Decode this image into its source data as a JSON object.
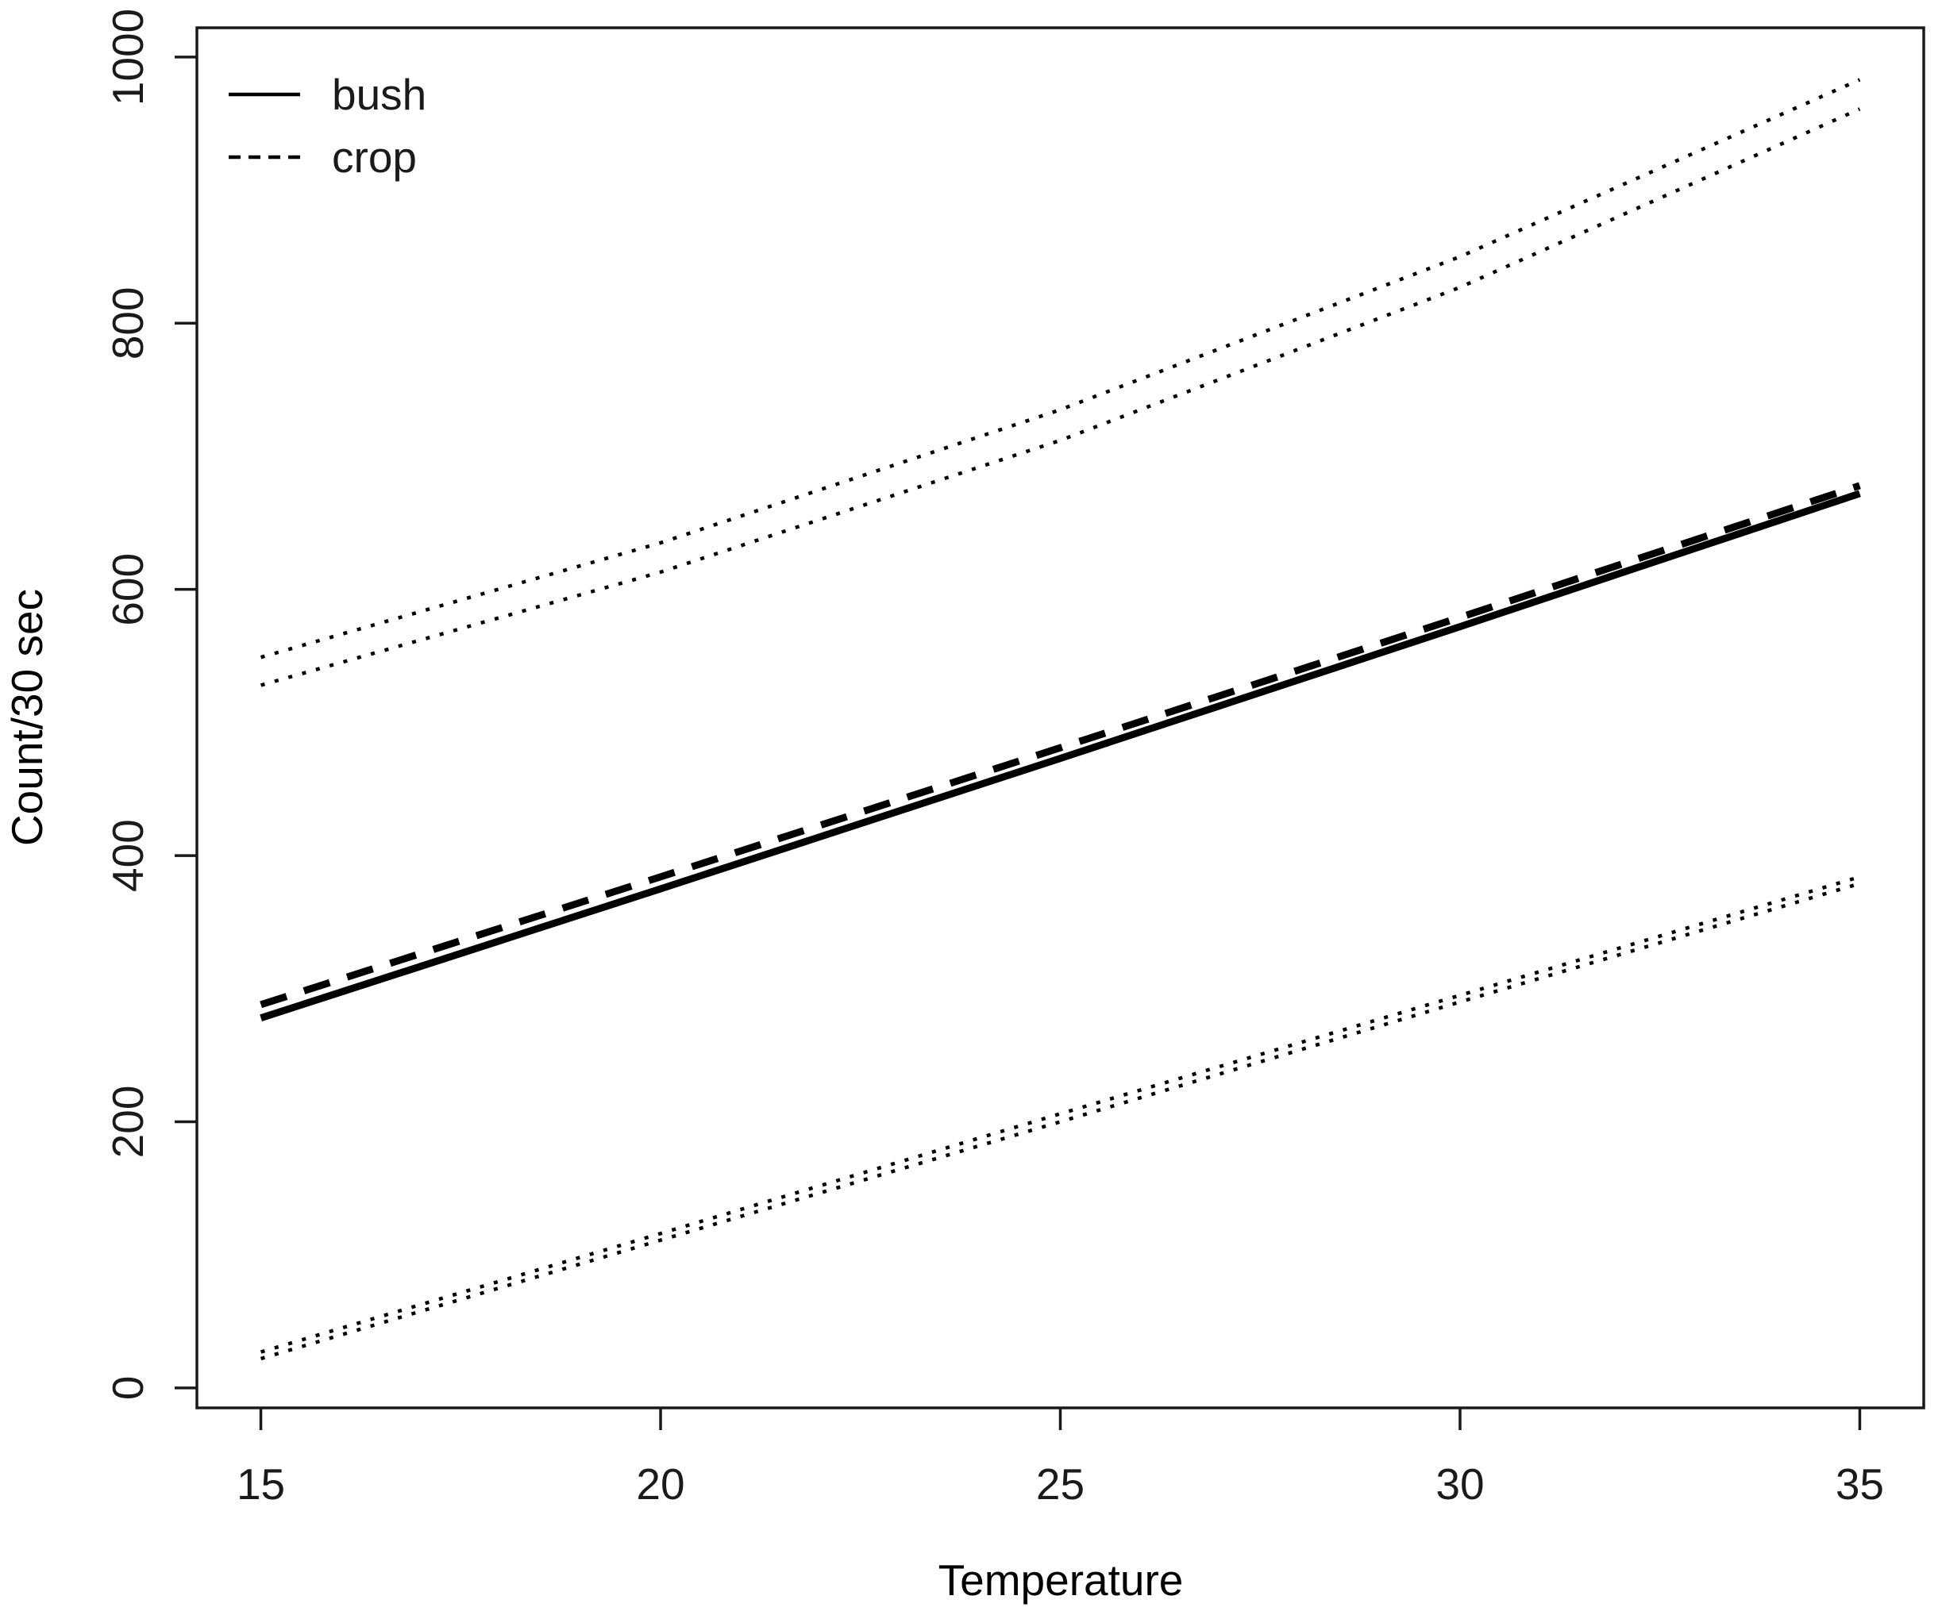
{
  "chart_data": {
    "type": "line",
    "title": "",
    "xlabel": "Temperature",
    "ylabel": "Count/30 sec",
    "x_ticks": [
      15,
      20,
      25,
      30,
      35
    ],
    "y_ticks": [
      0,
      200,
      400,
      600,
      800,
      1000
    ],
    "xlim": [
      14.2,
      35.8
    ],
    "ylim": [
      -15,
      1022
    ],
    "grid": false,
    "background": "#ffffff",
    "axis_color": "#1a1a1a",
    "line_color": "#000000",
    "legend": {
      "position": "top-left",
      "box": false,
      "entries": [
        {
          "label": "bush",
          "line_style": "solid"
        },
        {
          "label": "crop",
          "line_style": "dashed"
        }
      ]
    },
    "series": [
      {
        "name": "bush fitted line",
        "group": "bush",
        "role": "fit",
        "line_style": "solid",
        "line_width": 9,
        "x": [
          15,
          20,
          25,
          30,
          35
        ],
        "y": [
          278,
          375,
          473,
          572,
          672
        ]
      },
      {
        "name": "crop fitted line",
        "group": "crop",
        "role": "fit",
        "line_style": "dashed",
        "line_width": 9,
        "x": [
          15,
          20,
          25,
          30,
          35
        ],
        "y": [
          288,
          384,
          481,
          579,
          678
        ]
      },
      {
        "name": "crop upper confidence bound",
        "group": "crop",
        "role": "upper-band",
        "line_style": "dotted",
        "line_width": 4.5,
        "x": [
          15,
          20,
          25,
          30,
          35
        ],
        "y": [
          549,
          635,
          735,
          850,
          983
        ]
      },
      {
        "name": "bush upper confidence bound",
        "group": "bush",
        "role": "upper-band",
        "line_style": "dotted",
        "line_width": 4.5,
        "x": [
          15,
          20,
          25,
          30,
          35
        ],
        "y": [
          528,
          613,
          712,
          827,
          961
        ]
      },
      {
        "name": "crop lower confidence bound",
        "group": "crop",
        "role": "lower-band",
        "line_style": "dotted",
        "line_width": 4.5,
        "x": [
          15,
          20,
          25,
          30,
          35
        ],
        "y": [
          27,
          116,
          206,
          295,
          384
        ]
      },
      {
        "name": "bush lower confidence bound",
        "group": "bush",
        "role": "lower-band",
        "line_style": "dotted",
        "line_width": 4.5,
        "x": [
          15,
          20,
          25,
          30,
          35
        ],
        "y": [
          22,
          111,
          200,
          290,
          379
        ]
      }
    ]
  }
}
